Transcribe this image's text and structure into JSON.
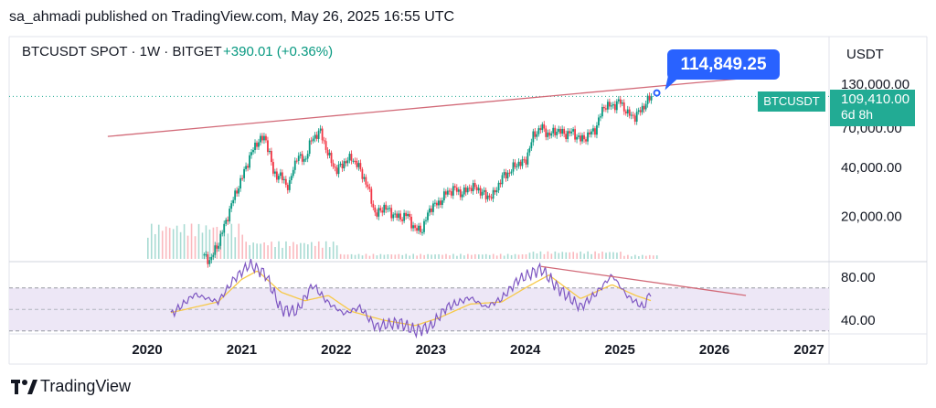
{
  "header": {
    "published": "sa_ahmadi published on TradingView.com, May 26, 2025 16:55 UTC",
    "symbol": "BTCUSDT SPOT · 1W · BITGET",
    "change": "+390.01 (+0.36%)"
  },
  "price_scale": {
    "currency": "USDT"
  },
  "callout": {
    "value": "114,849.25"
  },
  "price_tag": {
    "symbol": "BTCUSDT",
    "price": "109,410.00",
    "countdown": "6d 8h"
  },
  "footer": {
    "brand": "TradingView"
  },
  "colors": {
    "up": "#089981",
    "down": "#f23645",
    "trendline": "#d26a78",
    "callout": "#2962ff",
    "rsi": "#7e57c2",
    "rsi_ma": "#f7c948",
    "rsi_band": "#ede7f6",
    "last_price": "#22ab94"
  },
  "chart_data": [
    {
      "type": "candlestick",
      "title": "BTCUSDT SPOT · 1W · BITGET",
      "scale": "log",
      "y_ticks": [
        130000,
        70000,
        40000,
        20000
      ],
      "y_tick_labels": [
        "130,000.00",
        "70,000.00",
        "40,000.00",
        "20,000.00"
      ],
      "x_ticks": [
        "2020",
        "2021",
        "2022",
        "2023",
        "2024",
        "2025",
        "2026",
        "2027"
      ],
      "last_price": 109410,
      "annotation": {
        "label": "114,849.25",
        "date": "2025-05-22",
        "price": 114849.25
      },
      "trendline": {
        "from": [
          "2019-08",
          62000
        ],
        "to": [
          "2026-06",
          143000
        ]
      },
      "series": [
        {
          "type": "close_path",
          "points": [
            [
              "2020-08",
              11500
            ],
            [
              "2020-09",
              10700
            ],
            [
              "2020-10",
              13500
            ],
            [
              "2020-11",
              18500
            ],
            [
              "2020-12",
              26000
            ],
            [
              "2021-01",
              34000
            ],
            [
              "2021-02",
              46000
            ],
            [
              "2021-03",
              58000
            ],
            [
              "2021-04",
              61000
            ],
            [
              "2021-05",
              37000
            ],
            [
              "2021-06",
              35000
            ],
            [
              "2021-07",
              30000
            ],
            [
              "2021-08",
              47000
            ],
            [
              "2021-09",
              44000
            ],
            [
              "2021-10",
              61000
            ],
            [
              "2021-11",
              66000
            ],
            [
              "2021-12",
              47000
            ],
            [
              "2022-01",
              38000
            ],
            [
              "2022-02",
              43000
            ],
            [
              "2022-03",
              46000
            ],
            [
              "2022-04",
              39000
            ],
            [
              "2022-05",
              30000
            ],
            [
              "2022-06",
              20000
            ],
            [
              "2022-07",
              23000
            ],
            [
              "2022-08",
              21000
            ],
            [
              "2022-09",
              19500
            ],
            [
              "2022-10",
              20500
            ],
            [
              "2022-11",
              16500
            ],
            [
              "2022-12",
              16800
            ],
            [
              "2023-01",
              23000
            ],
            [
              "2023-02",
              24000
            ],
            [
              "2023-03",
              28000
            ],
            [
              "2023-04",
              29500
            ],
            [
              "2023-05",
              27500
            ],
            [
              "2023-06",
              30500
            ],
            [
              "2023-07",
              29500
            ],
            [
              "2023-08",
              26500
            ],
            [
              "2023-09",
              27000
            ],
            [
              "2023-10",
              34500
            ],
            [
              "2023-11",
              37500
            ],
            [
              "2023-12",
              42500
            ],
            [
              "2024-01",
              43000
            ],
            [
              "2024-02",
              62000
            ],
            [
              "2024-03",
              71000
            ],
            [
              "2024-04",
              63000
            ],
            [
              "2024-05",
              68000
            ],
            [
              "2024-06",
              64000
            ],
            [
              "2024-07",
              66000
            ],
            [
              "2024-08",
              59000
            ],
            [
              "2024-09",
              63000
            ],
            [
              "2024-10",
              70000
            ],
            [
              "2024-11",
              96000
            ],
            [
              "2024-12",
              95000
            ],
            [
              "2025-01",
              102000
            ],
            [
              "2025-02",
              85000
            ],
            [
              "2025-03",
              82000
            ],
            [
              "2025-04",
              95000
            ],
            [
              "2025-05",
              109410
            ]
          ]
        }
      ]
    },
    {
      "type": "bar",
      "title": "Volume",
      "note": "tall bars 2020 through early 2021, much lower afterwards",
      "relative_volume": {
        "2020": 0.7,
        "2021": 0.35,
        "2022": 0.1,
        "2023": 0.1,
        "2024": 0.15,
        "2025": 0.08
      }
    },
    {
      "type": "line",
      "title": "RSI",
      "y_ticks": [
        80,
        40
      ],
      "y_tick_labels": [
        "80.00",
        "40.00"
      ],
      "band": [
        30,
        70
      ],
      "divergence_line": {
        "from": [
          "2024-03",
          90
        ],
        "to": [
          "2026-05",
          63
        ]
      },
      "series": [
        {
          "name": "RSI",
          "points": [
            [
              "2020-04",
              45
            ],
            [
              "2020-07",
              64
            ],
            [
              "2020-10",
              57
            ],
            [
              "2020-12",
              78
            ],
            [
              "2021-02",
              92
            ],
            [
              "2021-04",
              83
            ],
            [
              "2021-06",
              50
            ],
            [
              "2021-08",
              48
            ],
            [
              "2021-10",
              73
            ],
            [
              "2021-12",
              56
            ],
            [
              "2022-02",
              46
            ],
            [
              "2022-04",
              52
            ],
            [
              "2022-06",
              34
            ],
            [
              "2022-09",
              38
            ],
            [
              "2022-11",
              30
            ],
            [
              "2023-01",
              34
            ],
            [
              "2023-03",
              52
            ],
            [
              "2023-06",
              61
            ],
            [
              "2023-08",
              52
            ],
            [
              "2023-10",
              60
            ],
            [
              "2023-12",
              77
            ],
            [
              "2024-03",
              88
            ],
            [
              "2024-05",
              71
            ],
            [
              "2024-08",
              52
            ],
            [
              "2024-10",
              65
            ],
            [
              "2024-12",
              82
            ],
            [
              "2025-02",
              62
            ],
            [
              "2025-04",
              52
            ],
            [
              "2025-05",
              68
            ]
          ]
        },
        {
          "name": "RSI MA",
          "points": [
            [
              "2020-04",
              47
            ],
            [
              "2020-10",
              57
            ],
            [
              "2021-01",
              78
            ],
            [
              "2021-03",
              86
            ],
            [
              "2021-06",
              66
            ],
            [
              "2021-09",
              58
            ],
            [
              "2021-12",
              63
            ],
            [
              "2022-03",
              48
            ],
            [
              "2022-07",
              40
            ],
            [
              "2022-11",
              35
            ],
            [
              "2023-02",
              42
            ],
            [
              "2023-06",
              55
            ],
            [
              "2023-10",
              57
            ],
            [
              "2024-01",
              70
            ],
            [
              "2024-04",
              82
            ],
            [
              "2024-08",
              60
            ],
            [
              "2024-12",
              73
            ],
            [
              "2025-03",
              63
            ],
            [
              "2025-05",
              58
            ]
          ]
        }
      ]
    }
  ]
}
